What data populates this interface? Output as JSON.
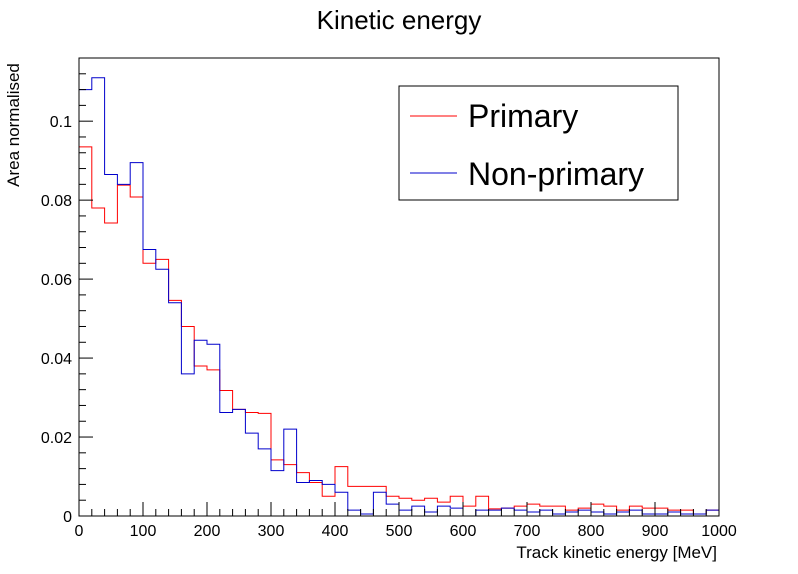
{
  "chart_data": {
    "type": "line",
    "title": "Kinetic energy",
    "xlabel": "Track kinetic energy [MeV]",
    "ylabel": "Area normalised",
    "xlim": [
      0,
      1000
    ],
    "ylim": [
      0,
      0.116
    ],
    "bin_width": 20,
    "x_ticks": [
      0,
      100,
      200,
      300,
      400,
      500,
      600,
      700,
      800,
      900,
      1000
    ],
    "x_tick_labels": [
      "0",
      "100",
      "200",
      "300",
      "400",
      "500",
      "600",
      "700",
      "800",
      "900",
      "1000"
    ],
    "y_ticks": [
      0,
      0.02,
      0.04,
      0.06,
      0.08,
      0.1
    ],
    "y_tick_labels": [
      "0",
      "0.02",
      "0.04",
      "0.06",
      "0.08",
      "0.1"
    ],
    "grid": false,
    "legend_position": "top-right",
    "series": [
      {
        "name": "Primary",
        "color": "#ff0000",
        "values": [
          0.0935,
          0.078,
          0.0742,
          0.0838,
          0.0808,
          0.064,
          0.065,
          0.0546,
          0.048,
          0.038,
          0.037,
          0.0318,
          0.027,
          0.0262,
          0.026,
          0.0142,
          0.013,
          0.011,
          0.0085,
          0.005,
          0.0125,
          0.0075,
          0.0075,
          0.0075,
          0.005,
          0.0045,
          0.004,
          0.0045,
          0.0035,
          0.005,
          0.0025,
          0.005,
          0.0018,
          0.002,
          0.0025,
          0.003,
          0.0025,
          0.0025,
          0.0015,
          0.002,
          0.003,
          0.0025,
          0.0015,
          0.0025,
          0.002,
          0.002,
          0.0015,
          0.0015,
          0.0005,
          0.0015
        ]
      },
      {
        "name": "Non-primary",
        "color": "#0000cc",
        "values": [
          0.108,
          0.111,
          0.0865,
          0.084,
          0.0895,
          0.0675,
          0.0625,
          0.054,
          0.036,
          0.0445,
          0.0435,
          0.0262,
          0.027,
          0.021,
          0.017,
          0.0115,
          0.022,
          0.0085,
          0.009,
          0.008,
          0.006,
          0.0015,
          0.0005,
          0.006,
          0.003,
          0.0015,
          0.0025,
          0.001,
          0.0025,
          0.002,
          0.0,
          0.0015,
          0.0015,
          0.002,
          0.0015,
          0.001,
          0.0015,
          0.0005,
          0.001,
          0.0015,
          0.001,
          0.0005,
          0.001,
          0.0015,
          0.0005,
          0.0005,
          0.001,
          0.0005,
          0.0005,
          0.0015
        ]
      }
    ]
  }
}
